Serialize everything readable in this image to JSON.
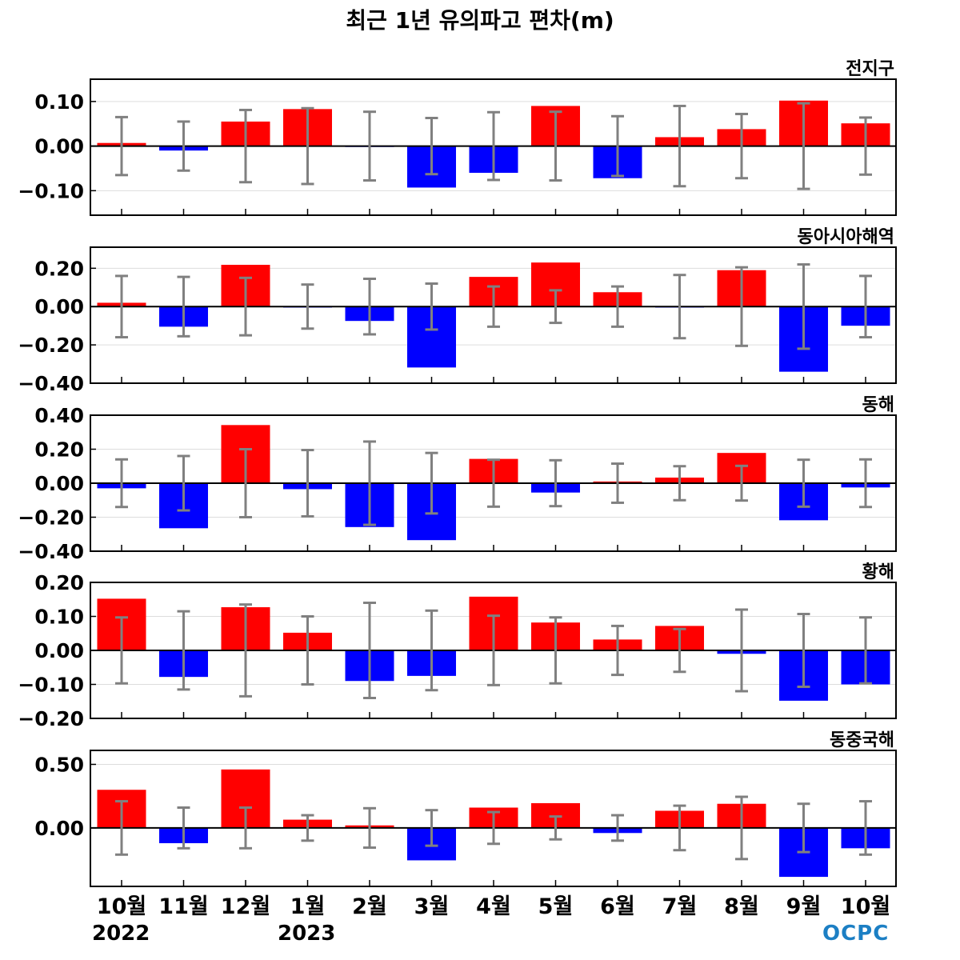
{
  "chart_data": {
    "type": "bar",
    "title": "최근 1년 유의파고 편차(m)",
    "categories": [
      "10월",
      "11월",
      "12월",
      "1월",
      "2월",
      "3월",
      "4월",
      "5월",
      "6월",
      "7월",
      "8월",
      "9월",
      "10월"
    ],
    "year_labels": [
      {
        "text": "2022",
        "category_index": 0
      },
      {
        "text": "2023",
        "category_index": 3
      }
    ],
    "colors": {
      "positive": "#ff0000",
      "negative": "#0000ff",
      "error_bar": "#808080",
      "grid": "#dddddd"
    },
    "grid": true,
    "panels": [
      {
        "name": "전지구",
        "ylim": [
          -0.155,
          0.15
        ],
        "yticks": [
          -0.1,
          0.0,
          0.1
        ],
        "ytick_labels": [
          "−0.10",
          "0.00",
          "0.10"
        ],
        "values": [
          0.007,
          -0.01,
          0.055,
          0.083,
          -0.002,
          -0.093,
          -0.06,
          0.09,
          -0.072,
          0.02,
          0.038,
          0.102,
          0.051
        ],
        "error": [
          0.065,
          0.055,
          0.081,
          0.085,
          0.077,
          0.063,
          0.076,
          0.077,
          0.067,
          0.09,
          0.072,
          0.096,
          0.064
        ]
      },
      {
        "name": "동아시아해역",
        "ylim": [
          -0.4,
          0.31
        ],
        "yticks": [
          -0.4,
          -0.2,
          0.0,
          0.2
        ],
        "ytick_labels": [
          "−0.40",
          "−0.20",
          "0.00",
          "0.20"
        ],
        "values": [
          0.02,
          -0.105,
          0.218,
          -0.005,
          -0.075,
          -0.318,
          0.155,
          0.23,
          0.075,
          -0.005,
          0.19,
          -0.34,
          -0.1
        ],
        "error": [
          0.16,
          0.155,
          0.15,
          0.115,
          0.145,
          0.12,
          0.105,
          0.085,
          0.105,
          0.165,
          0.205,
          0.22,
          0.16
        ]
      },
      {
        "name": "동해",
        "ylim": [
          -0.4,
          0.4
        ],
        "yticks": [
          -0.4,
          -0.2,
          0.0,
          0.2,
          0.4
        ],
        "ytick_labels": [
          "−0.40",
          "−0.20",
          "0.00",
          "0.20",
          "0.40"
        ],
        "values": [
          -0.03,
          -0.265,
          0.342,
          -0.035,
          -0.258,
          -0.335,
          0.143,
          -0.055,
          0.01,
          0.033,
          0.178,
          -0.218,
          -0.025
        ],
        "error": [
          0.14,
          0.16,
          0.2,
          0.195,
          0.245,
          0.178,
          0.138,
          0.135,
          0.115,
          0.1,
          0.102,
          0.138,
          0.14
        ]
      },
      {
        "name": "황해",
        "ylim": [
          -0.2,
          0.2
        ],
        "yticks": [
          -0.2,
          -0.1,
          0.0,
          0.1,
          0.2
        ],
        "ytick_labels": [
          "−0.20",
          "−0.10",
          "0.00",
          "0.10",
          "0.20"
        ],
        "values": [
          0.152,
          -0.078,
          0.127,
          0.052,
          -0.09,
          -0.075,
          0.158,
          0.082,
          0.032,
          0.072,
          -0.01,
          -0.148,
          -0.1
        ],
        "error": [
          0.097,
          0.115,
          0.135,
          0.1,
          0.14,
          0.117,
          0.102,
          0.097,
          0.072,
          0.063,
          0.12,
          0.107,
          0.097
        ]
      },
      {
        "name": "동중국해",
        "ylim": [
          -0.46,
          0.61
        ],
        "yticks": [
          0.0,
          0.5
        ],
        "ytick_labels": [
          "0.00",
          "0.50"
        ],
        "values": [
          0.3,
          -0.12,
          0.46,
          0.065,
          0.02,
          -0.255,
          0.16,
          0.195,
          -0.04,
          0.135,
          0.19,
          -0.385,
          -0.16
        ],
        "error": [
          0.21,
          0.16,
          0.16,
          0.1,
          0.155,
          0.14,
          0.125,
          0.09,
          0.1,
          0.175,
          0.245,
          0.19,
          0.21
        ]
      }
    ]
  },
  "logo_text": "OCPC"
}
